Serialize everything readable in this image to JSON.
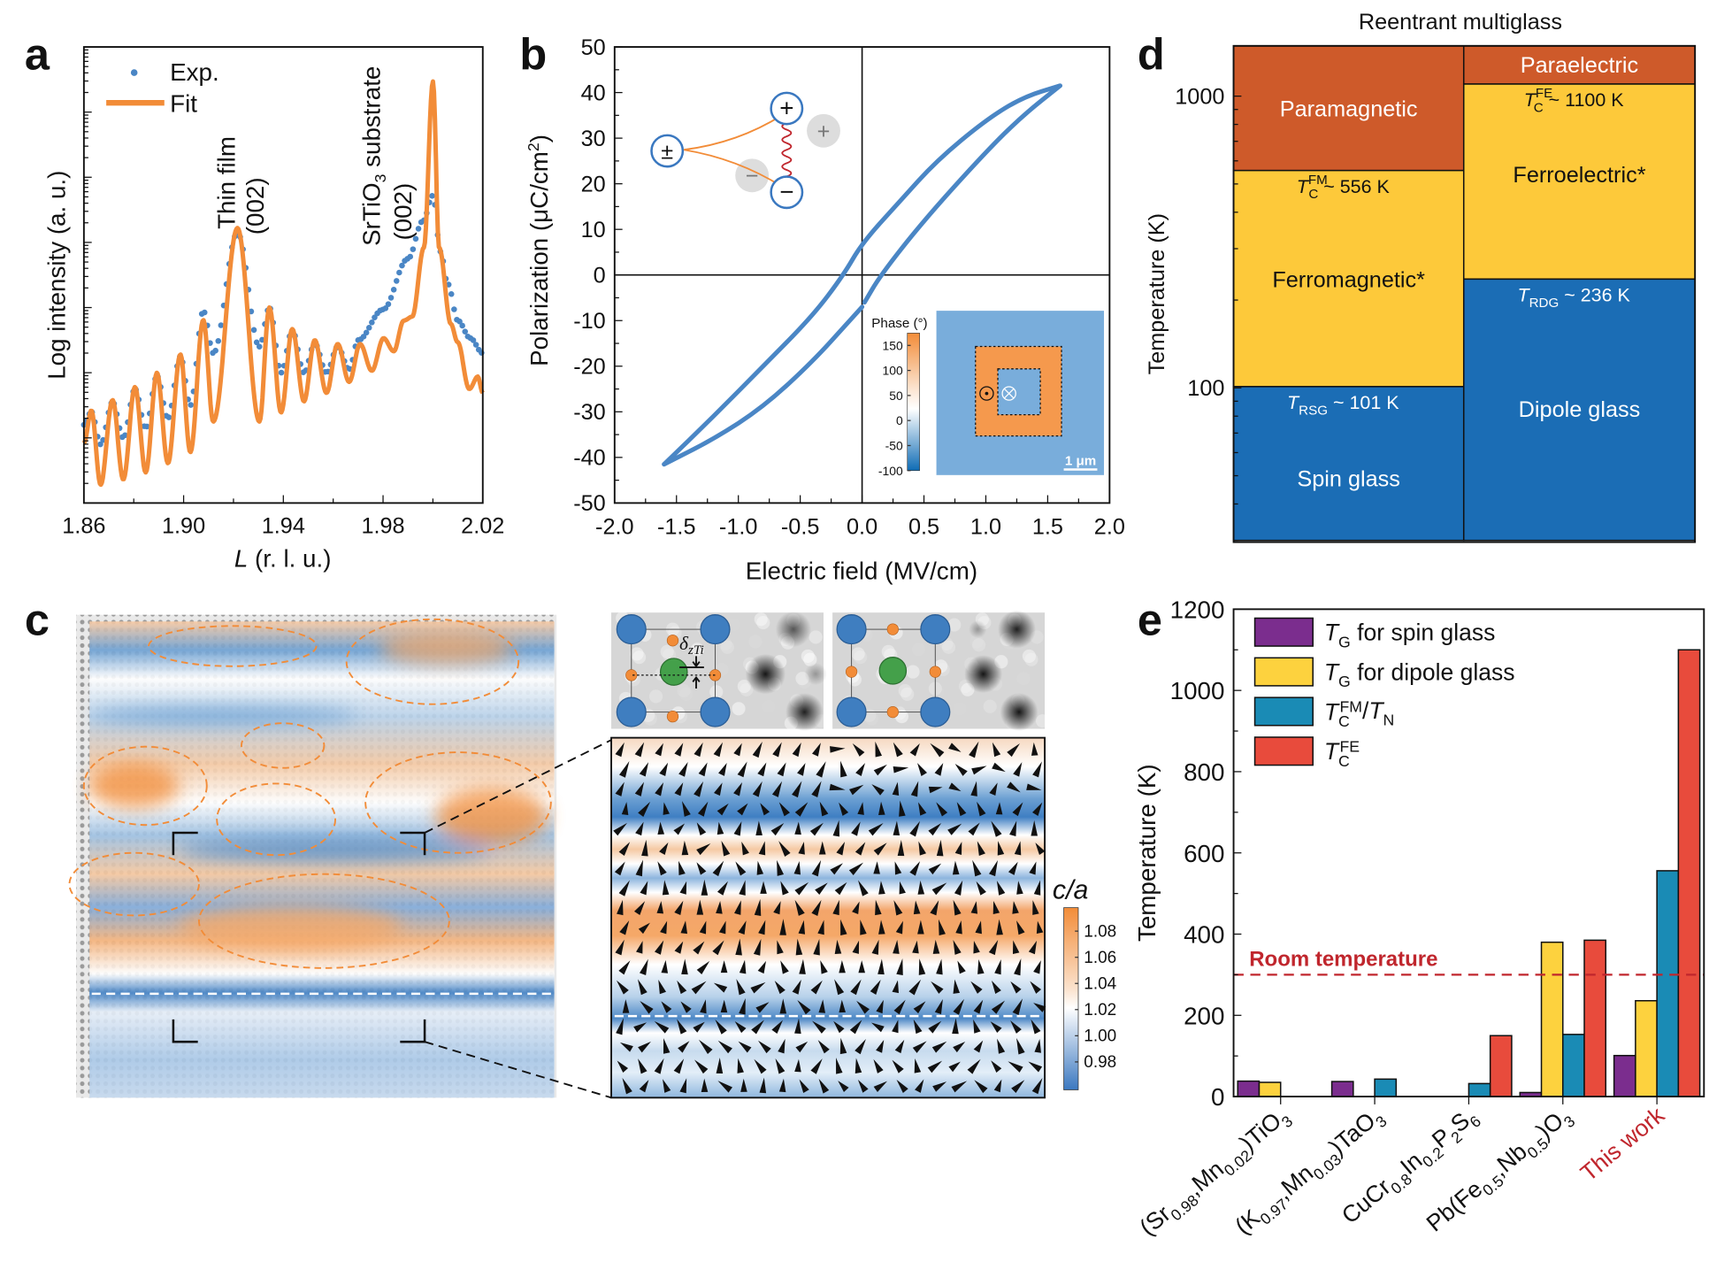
{
  "panels": {
    "a": "a",
    "b": "b",
    "c": "c",
    "d": "d",
    "e": "e"
  },
  "chart_data": [
    {
      "panel": "a",
      "type": "line+scatter",
      "xlabel_italic": "L",
      "xlabel_rest": " (r. l. u.)",
      "ylabel": "Log intensity (a. u.)",
      "xlim": [
        1.86,
        2.02
      ],
      "x_ticks": [
        "1.86",
        "1.90",
        "1.94",
        "1.98",
        "2.02"
      ],
      "y_scale": "log (unlabelled decades)",
      "ylim_decades": [
        0,
        7
      ],
      "legend": [
        "Exp.",
        "Fit"
      ],
      "legend_placement": "top-left",
      "colors": {
        "exp": "#4A86C5",
        "fit": "#F28C38"
      },
      "annotations": {
        "film_line1": "Thin film",
        "film_line2": "(002)",
        "sub_line1_pre": "SrTiO",
        "sub_line1_sub": "3",
        "sub_line1_post": " substrate",
        "sub_line2": "(002)"
      },
      "fit": [
        [
          1.86,
          0.92
        ],
        [
          1.863,
          1.42
        ],
        [
          1.8667,
          0.28
        ],
        [
          1.8715,
          1.58
        ],
        [
          1.8758,
          0.36
        ],
        [
          1.8805,
          1.78
        ],
        [
          1.8848,
          0.47
        ],
        [
          1.8893,
          2.0
        ],
        [
          1.8937,
          0.61
        ],
        [
          1.8987,
          2.28
        ],
        [
          1.9027,
          0.78
        ],
        [
          1.9079,
          2.81
        ],
        [
          1.9119,
          1.25
        ],
        [
          1.9216,
          4.22
        ],
        [
          1.9304,
          1.25
        ],
        [
          1.9344,
          3.0
        ],
        [
          1.9391,
          1.39
        ],
        [
          1.9436,
          2.67
        ],
        [
          1.9483,
          1.56
        ],
        [
          1.9526,
          2.5
        ],
        [
          1.9573,
          1.69
        ],
        [
          1.9618,
          2.44
        ],
        [
          1.9664,
          1.86
        ],
        [
          1.9708,
          2.44
        ],
        [
          1.9755,
          2.03
        ],
        [
          1.9802,
          2.53
        ],
        [
          1.9843,
          2.33
        ],
        [
          1.9883,
          2.8
        ],
        [
          1.9917,
          2.86
        ],
        [
          1.9964,
          3.92
        ],
        [
          2.0,
          6.47
        ],
        [
          2.0025,
          3.92
        ],
        [
          2.0072,
          2.75
        ],
        [
          2.0099,
          2.47
        ],
        [
          2.0146,
          1.75
        ],
        [
          2.018,
          1.94
        ],
        [
          2.02,
          1.69
        ]
      ],
      "exp": [
        [
          1.86,
          1.2
        ],
        [
          1.863,
          1.4
        ],
        [
          1.8667,
          0.9
        ],
        [
          1.8715,
          1.55
        ],
        [
          1.8758,
          1.0
        ],
        [
          1.8805,
          1.75
        ],
        [
          1.8848,
          1.15
        ],
        [
          1.8893,
          1.95
        ],
        [
          1.8937,
          1.3
        ],
        [
          1.8987,
          2.25
        ],
        [
          1.9027,
          1.5
        ],
        [
          1.9079,
          2.95
        ],
        [
          1.9119,
          2.3
        ],
        [
          1.9216,
          4.15
        ],
        [
          1.9304,
          2.4
        ],
        [
          1.9344,
          3.0
        ],
        [
          1.9391,
          2.0
        ],
        [
          1.9436,
          2.65
        ],
        [
          1.9483,
          2.0
        ],
        [
          1.9526,
          2.45
        ],
        [
          1.9573,
          2.0
        ],
        [
          1.9618,
          2.4
        ],
        [
          1.9664,
          2.05
        ],
        [
          1.97,
          2.5
        ],
        [
          1.98,
          2.97
        ],
        [
          1.99,
          3.75
        ],
        [
          1.996,
          4.33
        ],
        [
          2.0,
          4.72
        ],
        [
          2.003,
          3.86
        ],
        [
          2.006,
          3.36
        ],
        [
          2.01,
          2.8
        ],
        [
          2.015,
          2.53
        ],
        [
          2.02,
          2.3
        ]
      ]
    },
    {
      "panel": "b",
      "type": "line",
      "xlabel": "Electric field (MV/cm)",
      "ylabel_pre": "Polarization (μC/cm",
      "ylabel_sup": "2",
      "ylabel_post": ")",
      "xlim": [
        -2.0,
        2.0
      ],
      "ylim": [
        -50,
        50
      ],
      "x_ticks": [
        "-2.0",
        "-1.5",
        "-1.0",
        "-0.5",
        "0.0",
        "0.5",
        "1.0",
        "1.5",
        "2.0"
      ],
      "y_ticks": [
        "50",
        "40",
        "30",
        "20",
        "10",
        "0",
        "-10",
        "-20",
        "-30",
        "-40",
        "-50"
      ],
      "color": "#4A86C5",
      "upper_branch": [
        [
          1.6,
          41.5
        ],
        [
          1.3,
          39
        ],
        [
          1.0,
          34
        ],
        [
          0.6,
          25
        ],
        [
          0.3,
          16
        ],
        [
          0.0,
          7
        ],
        [
          -0.15,
          0
        ],
        [
          -0.4,
          -9
        ],
        [
          -0.8,
          -20
        ],
        [
          -1.2,
          -31
        ],
        [
          -1.6,
          -41.5
        ]
      ],
      "lower_branch": [
        [
          -1.6,
          -41.5
        ],
        [
          -1.2,
          -36
        ],
        [
          -0.8,
          -29
        ],
        [
          -0.4,
          -19
        ],
        [
          -0.1,
          -10
        ],
        [
          0.0,
          -7
        ]
      ],
      "lower_branch_2": [
        [
          0.02,
          -6
        ],
        [
          0.15,
          0
        ],
        [
          0.5,
          12
        ],
        [
          1.0,
          27
        ],
        [
          1.3,
          35
        ],
        [
          1.6,
          41.5
        ]
      ],
      "inset": {
        "colorbar_title": "Phase (°)",
        "colorbar_ticks": [
          "150",
          "100",
          "50",
          "0",
          "-50",
          "-100"
        ],
        "scale_bar": "1 μm",
        "schematic_symbols": [
          "±",
          "+",
          "−",
          "+",
          "−"
        ]
      }
    },
    {
      "panel": "c",
      "type": "heatmap",
      "colorbar_label": "c/a",
      "colorbar_ticks": [
        "1.08",
        "1.06",
        "1.04",
        "1.02",
        "1.00",
        "0.98"
      ],
      "colors": {
        "high": "#F28C38",
        "mid": "#FFFFFF",
        "low": "#3B78C0"
      },
      "stem_label_delta": "δ",
      "stem_label_sub": "zTi"
    },
    {
      "panel": "d",
      "type": "phase-diagram",
      "title": "Reentrant multiglass",
      "ylabel": "Temperature (K)",
      "y_scale": "log",
      "ylim": [
        30,
        1486
      ],
      "y_ticks": [
        "1000",
        "100"
      ],
      "columns": [
        {
          "regions": [
            {
              "label": "Paramagnetic",
              "from": 556,
              "to": 1486,
              "color": "#CE5A2A",
              "text_color": "#ffffff"
            },
            {
              "label": "Ferromagnetic*",
              "from": 101,
              "to": 556,
              "color": "#FDC93A",
              "text_color": "#111111"
            },
            {
              "label": "Spin glass",
              "from": 30,
              "to": 101,
              "color": "#1B6DB5",
              "text_color": "#ffffff"
            }
          ],
          "transitions": [
            {
              "sym": "T",
              "sub": "C",
              "sup": "FM",
              "text": " ~ 556 K",
              "color": "#111111"
            },
            {
              "sym": "T",
              "sub": "RSG",
              "sup": "",
              "text": " ~ 101 K",
              "color": "#ffffff"
            }
          ]
        },
        {
          "regions": [
            {
              "label": "Paraelectric",
              "from": 1100,
              "to": 1486,
              "color": "#CE5A2A",
              "text_color": "#ffffff"
            },
            {
              "label": "Ferroelectric*",
              "from": 236,
              "to": 1100,
              "color": "#FDC93A",
              "text_color": "#111111"
            },
            {
              "label": "Dipole glass",
              "from": 30,
              "to": 236,
              "color": "#1B6DB5",
              "text_color": "#ffffff"
            }
          ],
          "transitions": [
            {
              "sym": "T",
              "sub": "C",
              "sup": "FE",
              "text": " ~ 1100 K",
              "color": "#111111"
            },
            {
              "sym": "T",
              "sub": "RDG",
              "sup": "",
              "text": " ~ 236 K",
              "color": "#ffffff"
            }
          ]
        }
      ]
    },
    {
      "panel": "e",
      "type": "bar",
      "ylabel": "Temperature (K)",
      "ylim": [
        0,
        1200
      ],
      "y_ticks": [
        "0",
        "200",
        "400",
        "600",
        "800",
        "1000",
        "1200"
      ],
      "reference_line": {
        "value": 300,
        "label": "Room temperature",
        "color": "#C0262D"
      },
      "categories": [
        [
          [
            "(Sr",
            ""
          ],
          [
            "0.98",
            "sub"
          ],
          [
            ",Mn",
            ""
          ],
          [
            "0.02",
            "sub"
          ],
          [
            ")TiO",
            ""
          ],
          [
            "3",
            "sub"
          ]
        ],
        [
          [
            "(K",
            ""
          ],
          [
            "0.97",
            "sub"
          ],
          [
            ",Mn",
            ""
          ],
          [
            "0.03",
            "sub"
          ],
          [
            ")TaO",
            ""
          ],
          [
            "3",
            "sub"
          ]
        ],
        [
          [
            "CuCr",
            ""
          ],
          [
            "0.8",
            "sub"
          ],
          [
            "In",
            ""
          ],
          [
            "0.2",
            "sub"
          ],
          [
            "P",
            ""
          ],
          [
            "2",
            "sub"
          ],
          [
            "S",
            ""
          ],
          [
            "6",
            "sub"
          ]
        ],
        [
          [
            "Pb(Fe",
            ""
          ],
          [
            "0.5",
            "sub"
          ],
          [
            ",Nb",
            ""
          ],
          [
            "0.5",
            "sub"
          ],
          [
            ")O",
            ""
          ],
          [
            "3",
            "sub"
          ]
        ],
        [
          [
            "This work",
            ""
          ]
        ]
      ],
      "category_colors": [
        "#111111",
        "#111111",
        "#111111",
        "#111111",
        "#C0262D"
      ],
      "series": [
        {
          "legend": [
            [
              "T",
              "it"
            ],
            [
              "G",
              "sub"
            ],
            [
              " for spin glass",
              ""
            ]
          ],
          "color": "#7B2D8E",
          "values": [
            38,
            37,
            null,
            10,
            101
          ]
        },
        {
          "legend": [
            [
              "T",
              "it"
            ],
            [
              "G",
              "sub"
            ],
            [
              " for dipole glass",
              ""
            ]
          ],
          "color": "#FDD23E",
          "values": [
            35,
            null,
            null,
            380,
            236
          ]
        },
        {
          "legend": [
            [
              "T",
              "it"
            ],
            [
              "C",
              "sub"
            ],
            [
              "FM",
              "sup"
            ],
            [
              "/",
              ""
            ],
            [
              "T",
              "it"
            ],
            [
              "N",
              "sub"
            ]
          ],
          "color": "#1A8BB5",
          "values": [
            null,
            43,
            32,
            153,
            556
          ]
        },
        {
          "legend": [
            [
              "T",
              "it"
            ],
            [
              "C",
              "sub"
            ],
            [
              "FE",
              "sup"
            ]
          ],
          "color": "#E84B3C",
          "values": [
            null,
            null,
            150,
            385,
            1100
          ]
        }
      ],
      "legend_placement": "top-left"
    }
  ]
}
